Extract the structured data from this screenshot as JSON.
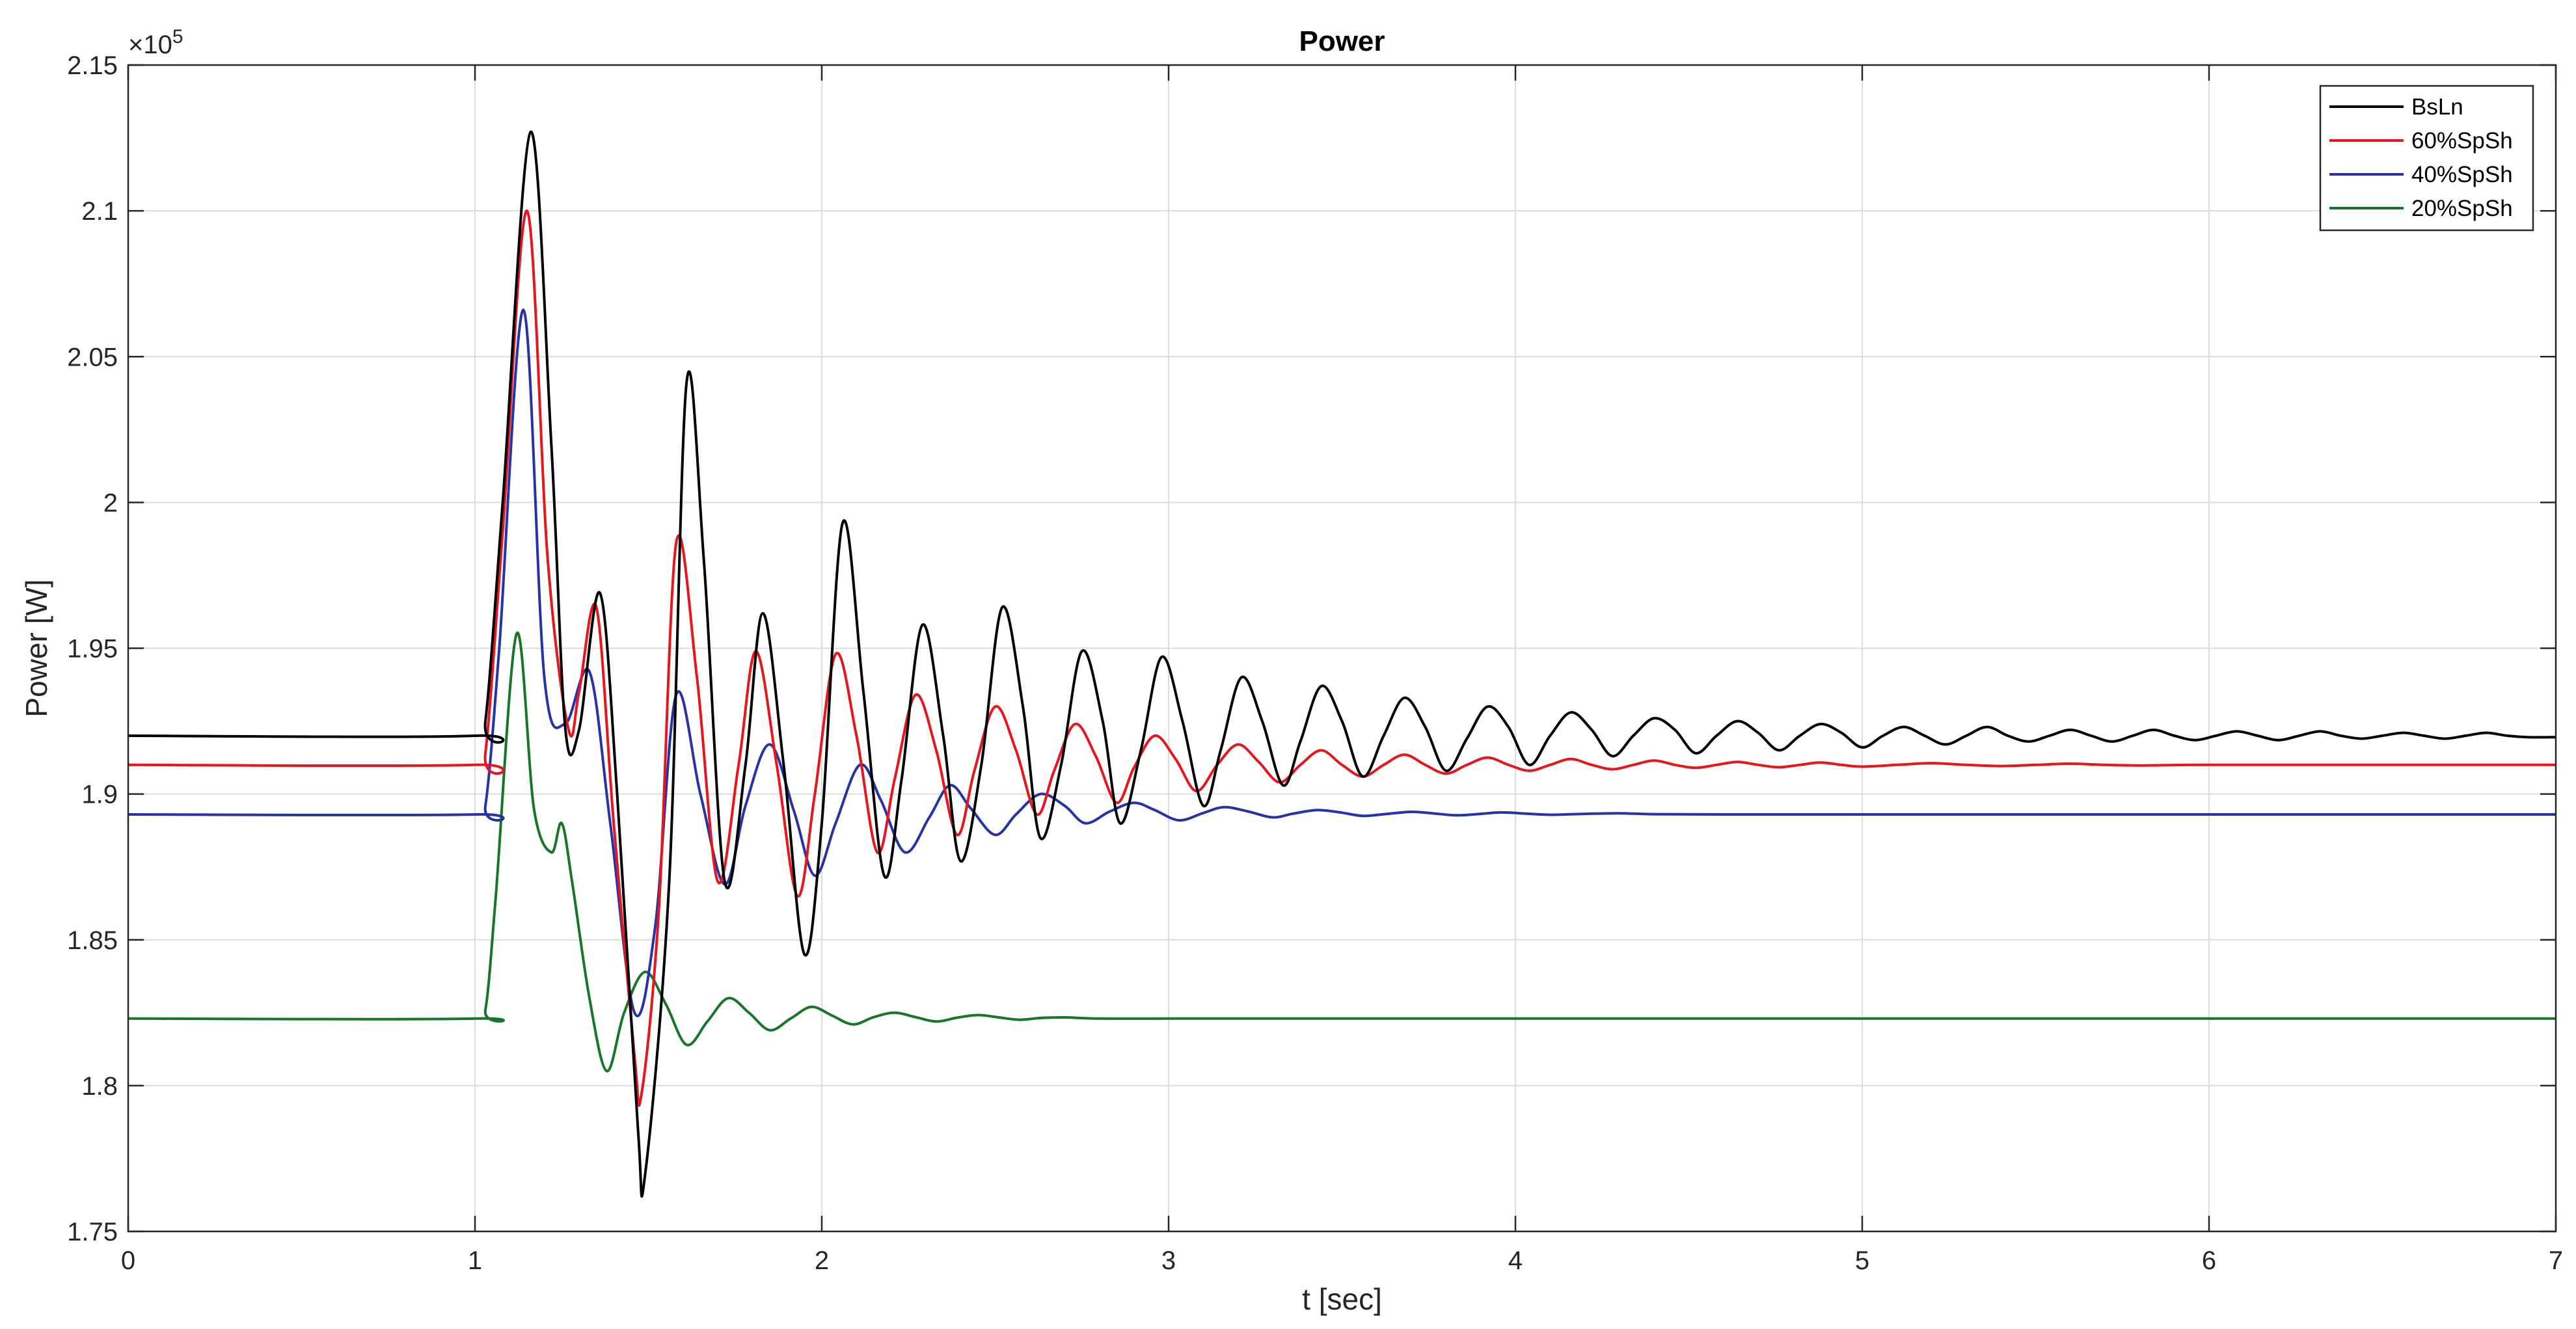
{
  "chart_data": {
    "type": "line",
    "title": "Power",
    "xlabel": "t [sec]",
    "ylabel": "Power [W]",
    "xlim": [
      0,
      7
    ],
    "ylim": [
      175000,
      215000
    ],
    "y_exponent_label": "×10",
    "y_exponent_power": "5",
    "xticks": [
      0,
      1,
      2,
      3,
      4,
      5,
      6,
      7
    ],
    "xtick_labels": [
      "0",
      "1",
      "2",
      "3",
      "4",
      "5",
      "6",
      "7"
    ],
    "yticks": [
      175000,
      180000,
      185000,
      190000,
      195000,
      200000,
      205000,
      210000,
      215000
    ],
    "ytick_labels": [
      "1.75",
      "1.8",
      "1.85",
      "1.9",
      "1.95",
      "2",
      "2.05",
      "2.1",
      "2.15"
    ],
    "grid": true,
    "legend_position": "top-right",
    "series": [
      {
        "name": "BsLn",
        "color": "#000000",
        "x": [
          0,
          1.0,
          1.03,
          1.08,
          1.16,
          1.22,
          1.26,
          1.3,
          1.36,
          1.41,
          1.47,
          1.49,
          1.56,
          1.61,
          1.66,
          1.72,
          1.78,
          1.83,
          1.89,
          1.95,
          2.0,
          2.06,
          2.12,
          2.18,
          2.23,
          2.29,
          2.35,
          2.4,
          2.46,
          2.52,
          2.58,
          2.63,
          2.69,
          2.75,
          2.81,
          2.86,
          2.92,
          2.98,
          3.04,
          3.1,
          3.15,
          3.21,
          3.27,
          3.33,
          3.38,
          3.44,
          3.5,
          3.56,
          3.62,
          3.68,
          3.74,
          3.8,
          3.86,
          3.92,
          3.98,
          4.04,
          4.1,
          4.16,
          4.22,
          4.28,
          4.34,
          4.4,
          4.46,
          4.52,
          4.58,
          4.64,
          4.7,
          4.76,
          4.82,
          4.88,
          4.94,
          5.0,
          5.06,
          5.12,
          5.18,
          5.24,
          5.3,
          5.36,
          5.42,
          5.48,
          5.54,
          5.6,
          5.66,
          5.72,
          5.78,
          5.84,
          5.9,
          5.96,
          6.02,
          6.08,
          6.14,
          6.2,
          6.26,
          6.32,
          6.38,
          6.44,
          6.5,
          6.56,
          6.62,
          6.68,
          6.74,
          6.8,
          6.86,
          6.92,
          7.0
        ],
        "y": [
          192000,
          192000,
          192500,
          200000,
          212700,
          202000,
          192300,
          192200,
          196900,
          190000,
          178500,
          176900,
          187000,
          204100,
          198000,
          187000,
          191000,
          196200,
          191000,
          184500,
          189000,
          199300,
          193500,
          187200,
          190500,
          195800,
          192000,
          187700,
          191000,
          196400,
          193000,
          188500,
          191000,
          194900,
          192500,
          189000,
          191500,
          194700,
          192500,
          189600,
          191500,
          194000,
          192500,
          190300,
          191800,
          193700,
          192500,
          190600,
          192000,
          193300,
          192300,
          190800,
          191900,
          193000,
          192300,
          191000,
          192000,
          192800,
          192200,
          191300,
          192000,
          192600,
          192200,
          191400,
          192000,
          192500,
          192100,
          191500,
          192000,
          192400,
          192100,
          191600,
          192000,
          192300,
          192000,
          191700,
          192000,
          192300,
          192000,
          191800,
          192000,
          192200,
          192000,
          191800,
          192000,
          192200,
          192000,
          191850,
          192000,
          192150,
          192000,
          191850,
          192000,
          192150,
          192000,
          191900,
          192000,
          192100,
          192000,
          191900,
          192000,
          192100,
          192000,
          191950,
          191950
        ]
      },
      {
        "name": "60%SpSh",
        "color": "#e8141e",
        "x": [
          0,
          1.0,
          1.03,
          1.08,
          1.15,
          1.21,
          1.27,
          1.3,
          1.35,
          1.4,
          1.46,
          1.48,
          1.53,
          1.58,
          1.64,
          1.7,
          1.76,
          1.81,
          1.87,
          1.93,
          1.98,
          2.04,
          2.1,
          2.16,
          2.21,
          2.27,
          2.33,
          2.39,
          2.44,
          2.5,
          2.56,
          2.62,
          2.67,
          2.73,
          2.79,
          2.85,
          2.9,
          2.96,
          3.02,
          3.08,
          3.14,
          3.2,
          3.26,
          3.32,
          3.38,
          3.44,
          3.5,
          3.56,
          3.62,
          3.68,
          3.74,
          3.8,
          3.86,
          3.92,
          3.98,
          4.04,
          4.1,
          4.16,
          4.22,
          4.28,
          4.34,
          4.4,
          4.46,
          4.52,
          4.58,
          4.64,
          4.7,
          4.76,
          4.82,
          4.88,
          4.94,
          5.0,
          5.1,
          5.2,
          5.3,
          5.4,
          5.5,
          5.6,
          5.7,
          5.8,
          6.0,
          6.5,
          7.0
        ],
        "y": [
          191000,
          191000,
          191400,
          199000,
          210000,
          198000,
          192200,
          193500,
          196400,
          189000,
          181000,
          179700,
          186000,
          198600,
          194000,
          187000,
          191000,
          194900,
          191000,
          186500,
          190000,
          194800,
          192000,
          188000,
          190500,
          193400,
          191500,
          188600,
          190800,
          193000,
          191500,
          189300,
          190800,
          192400,
          191300,
          189700,
          190900,
          192000,
          191200,
          190100,
          191000,
          191700,
          191100,
          190400,
          191000,
          191500,
          191000,
          190600,
          191000,
          191350,
          191000,
          190700,
          191000,
          191250,
          191000,
          190800,
          191000,
          191200,
          191000,
          190850,
          191000,
          191150,
          191000,
          190900,
          191000,
          191100,
          191000,
          190920,
          191000,
          191080,
          191000,
          190940,
          191000,
          191060,
          191000,
          190960,
          191000,
          191040,
          191000,
          190980,
          191000,
          191000,
          191000
        ]
      },
      {
        "name": "40%SpSh",
        "color": "#2633a8",
        "x": [
          0,
          1.0,
          1.03,
          1.07,
          1.14,
          1.2,
          1.26,
          1.33,
          1.39,
          1.46,
          1.52,
          1.58,
          1.65,
          1.72,
          1.78,
          1.85,
          1.92,
          1.98,
          2.04,
          2.11,
          2.17,
          2.24,
          2.31,
          2.37,
          2.43,
          2.5,
          2.56,
          2.63,
          2.7,
          2.76,
          2.83,
          2.9,
          2.96,
          3.03,
          3.1,
          3.16,
          3.23,
          3.3,
          3.36,
          3.43,
          3.5,
          3.56,
          3.63,
          3.7,
          3.76,
          3.83,
          3.9,
          3.96,
          4.03,
          4.1,
          4.2,
          4.3,
          4.4,
          4.6,
          5.0,
          6.0,
          7.0
        ],
        "y": [
          189300,
          189300,
          189600,
          195000,
          206600,
          194000,
          192400,
          194200,
          189000,
          182500,
          185500,
          193400,
          190000,
          186900,
          189600,
          191700,
          189400,
          187200,
          189000,
          191000,
          189800,
          188000,
          189200,
          190300,
          189500,
          188600,
          189300,
          190000,
          189600,
          189000,
          189400,
          189700,
          189450,
          189100,
          189350,
          189550,
          189400,
          189200,
          189330,
          189450,
          189360,
          189250,
          189320,
          189390,
          189340,
          189270,
          189320,
          189370,
          189330,
          189290,
          189320,
          189340,
          189310,
          189300,
          189300,
          189300,
          189300
        ]
      },
      {
        "name": "20%SpSh",
        "color": "#19752a",
        "x": [
          0,
          1.0,
          1.03,
          1.06,
          1.12,
          1.17,
          1.22,
          1.25,
          1.28,
          1.33,
          1.38,
          1.43,
          1.49,
          1.55,
          1.61,
          1.67,
          1.73,
          1.79,
          1.85,
          1.91,
          1.97,
          2.03,
          2.09,
          2.15,
          2.21,
          2.27,
          2.33,
          2.39,
          2.45,
          2.51,
          2.57,
          2.63,
          2.7,
          2.8,
          3.0,
          4.0,
          7.0
        ],
        "y": [
          182300,
          182300,
          182600,
          186500,
          195500,
          189500,
          188000,
          189000,
          187000,
          183000,
          180500,
          182500,
          183900,
          182800,
          181400,
          182200,
          183000,
          182500,
          181900,
          182300,
          182700,
          182400,
          182100,
          182350,
          182500,
          182350,
          182200,
          182330,
          182420,
          182340,
          182260,
          182320,
          182340,
          182300,
          182300,
          182300,
          182300
        ]
      }
    ]
  }
}
